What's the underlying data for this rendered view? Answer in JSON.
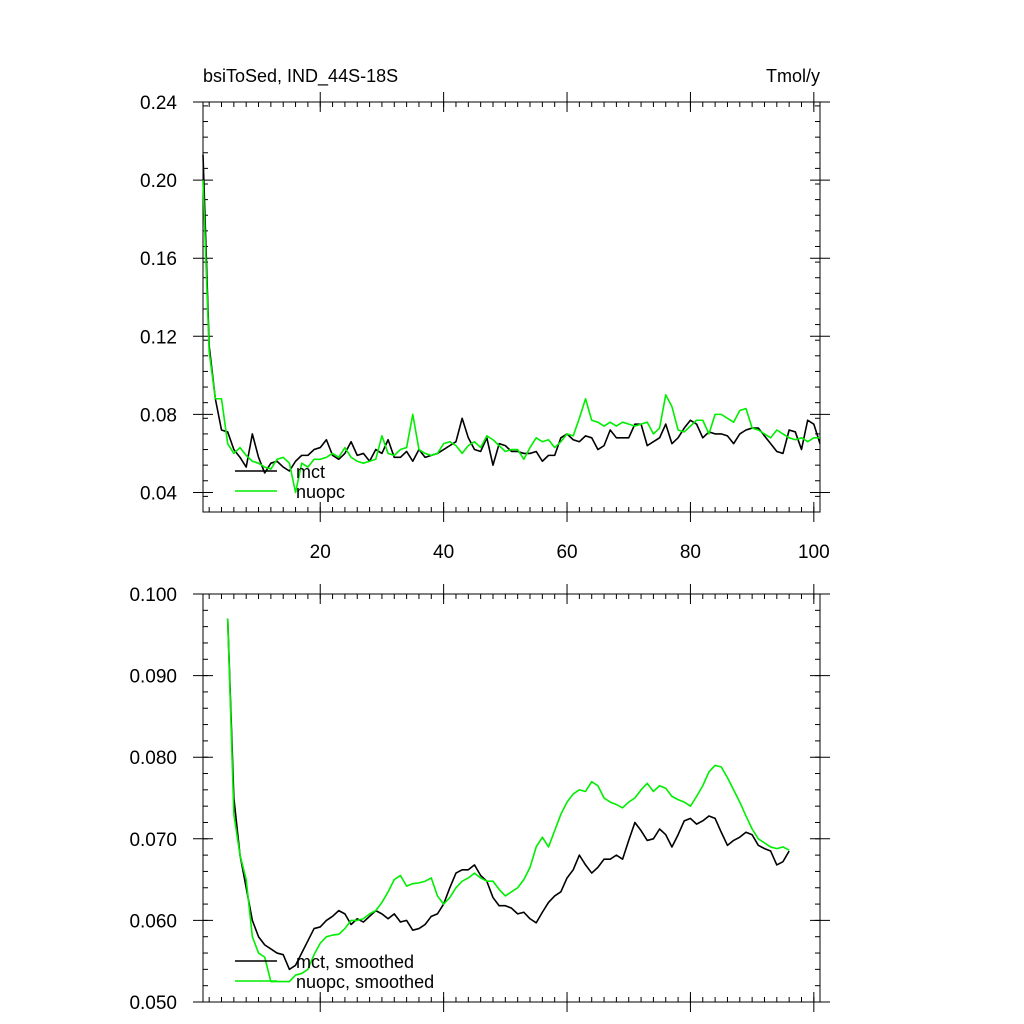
{
  "chart_data": [
    {
      "type": "line",
      "title_left": "bsiToSed, IND_44S-18S",
      "title_right": "Tmol/y",
      "xlim": [
        1,
        101
      ],
      "ylim": [
        0.03,
        0.24
      ],
      "x_ticks": [
        20,
        40,
        60,
        80,
        100
      ],
      "x_tick_labels": [
        "20",
        "40",
        "60",
        "80",
        "100"
      ],
      "y_ticks": [
        0.04,
        0.08,
        0.12,
        0.16,
        0.2,
        0.24
      ],
      "y_tick_labels": [
        "0.04",
        "0.08",
        "0.12",
        "0.16",
        "0.20",
        "0.24"
      ],
      "legend": "bottom-left",
      "x_start": 1,
      "series": [
        {
          "name": "mct",
          "color": "#000000",
          "values": [
            0.213,
            0.115,
            0.088,
            0.072,
            0.071,
            0.062,
            0.058,
            0.053,
            0.07,
            0.058,
            0.05,
            0.055,
            0.056,
            0.053,
            0.051,
            0.056,
            0.059,
            0.059,
            0.062,
            0.063,
            0.067,
            0.059,
            0.057,
            0.06,
            0.066,
            0.059,
            0.06,
            0.056,
            0.062,
            0.06,
            0.067,
            0.058,
            0.058,
            0.061,
            0.056,
            0.062,
            0.058,
            0.059,
            0.06,
            0.062,
            0.064,
            0.066,
            0.078,
            0.068,
            0.062,
            0.061,
            0.068,
            0.054,
            0.065,
            0.064,
            0.061,
            0.061,
            0.06,
            0.06,
            0.061,
            0.056,
            0.059,
            0.059,
            0.068,
            0.07,
            0.067,
            0.066,
            0.069,
            0.068,
            0.062,
            0.064,
            0.072,
            0.068,
            0.068,
            0.068,
            0.075,
            0.075,
            0.064,
            0.066,
            0.068,
            0.075,
            0.065,
            0.068,
            0.073,
            0.077,
            0.075,
            0.068,
            0.071,
            0.07,
            0.07,
            0.069,
            0.065,
            0.07,
            0.072,
            0.073,
            0.073,
            0.069,
            0.065,
            0.061,
            0.06,
            0.072,
            0.071,
            0.062,
            0.077,
            0.075,
            0.065
          ]
        },
        {
          "name": "nuopc",
          "color": "#00ee00",
          "values": [
            0.2,
            0.112,
            0.088,
            0.088,
            0.065,
            0.06,
            0.063,
            0.059,
            0.056,
            0.055,
            0.053,
            0.052,
            0.057,
            0.058,
            0.055,
            0.04,
            0.055,
            0.053,
            0.057,
            0.057,
            0.058,
            0.06,
            0.058,
            0.063,
            0.058,
            0.056,
            0.055,
            0.056,
            0.057,
            0.069,
            0.06,
            0.059,
            0.062,
            0.063,
            0.08,
            0.062,
            0.06,
            0.059,
            0.06,
            0.065,
            0.066,
            0.064,
            0.06,
            0.064,
            0.066,
            0.063,
            0.069,
            0.067,
            0.064,
            0.061,
            0.062,
            0.062,
            0.057,
            0.063,
            0.068,
            0.066,
            0.067,
            0.063,
            0.066,
            0.07,
            0.069,
            0.078,
            0.088,
            0.077,
            0.076,
            0.074,
            0.076,
            0.074,
            0.076,
            0.075,
            0.074,
            0.075,
            0.076,
            0.07,
            0.073,
            0.09,
            0.084,
            0.072,
            0.071,
            0.074,
            0.077,
            0.077,
            0.07,
            0.08,
            0.08,
            0.078,
            0.076,
            0.082,
            0.083,
            0.073,
            0.072,
            0.07,
            0.068,
            0.072,
            0.07,
            0.068,
            0.067,
            0.068,
            0.066,
            0.068,
            0.068
          ]
        }
      ]
    },
    {
      "type": "line",
      "xlim": [
        1,
        101
      ],
      "ylim": [
        0.05,
        0.1
      ],
      "x_ticks": [
        20,
        40,
        60,
        80,
        100
      ],
      "x_tick_labels": [
        "",
        "",
        "",
        "",
        ""
      ],
      "y_ticks": [
        0.05,
        0.06,
        0.07,
        0.08,
        0.09,
        0.1
      ],
      "y_tick_labels": [
        "0.050",
        "0.060",
        "0.070",
        "0.080",
        "0.090",
        "0.100"
      ],
      "legend": "bottom-left",
      "x_start": 5,
      "series": [
        {
          "name": "mct, smoothed",
          "color": "#000000",
          "values": [
            0.097,
            0.075,
            0.068,
            0.064,
            0.06,
            0.058,
            0.057,
            0.0565,
            0.056,
            0.0558,
            0.054,
            0.0545,
            0.056,
            0.0575,
            0.059,
            0.0592,
            0.06,
            0.0605,
            0.0612,
            0.0608,
            0.0595,
            0.0602,
            0.0598,
            0.0605,
            0.0612,
            0.0608,
            0.0602,
            0.0608,
            0.0598,
            0.06,
            0.0588,
            0.059,
            0.0595,
            0.0605,
            0.0608,
            0.062,
            0.064,
            0.0658,
            0.0662,
            0.0662,
            0.0668,
            0.0655,
            0.0648,
            0.0628,
            0.0618,
            0.0618,
            0.0615,
            0.0608,
            0.061,
            0.0602,
            0.0597,
            0.061,
            0.0622,
            0.063,
            0.0635,
            0.0652,
            0.0662,
            0.068,
            0.0668,
            0.0658,
            0.0665,
            0.0675,
            0.0675,
            0.068,
            0.0675,
            0.0698,
            0.072,
            0.071,
            0.0698,
            0.07,
            0.0712,
            0.0705,
            0.069,
            0.0705,
            0.0722,
            0.0725,
            0.0718,
            0.0722,
            0.0728,
            0.0725,
            0.0708,
            0.0692,
            0.0698,
            0.0702,
            0.0708,
            0.0705,
            0.0692,
            0.0688,
            0.0685,
            0.0668,
            0.0672,
            0.0685
          ]
        },
        {
          "name": "nuopc, smoothed",
          "color": "#00ee00",
          "values": [
            0.097,
            0.073,
            0.068,
            0.065,
            0.058,
            0.056,
            0.0555,
            0.0525,
            0.0525,
            0.0525,
            0.0525,
            0.0533,
            0.0535,
            0.054,
            0.0558,
            0.0572,
            0.058,
            0.0582,
            0.0583,
            0.059,
            0.06,
            0.06,
            0.0602,
            0.0608,
            0.0612,
            0.0622,
            0.0635,
            0.065,
            0.0655,
            0.0642,
            0.0645,
            0.0646,
            0.0648,
            0.0652,
            0.063,
            0.062,
            0.0628,
            0.064,
            0.0648,
            0.0652,
            0.0658,
            0.0652,
            0.0648,
            0.0648,
            0.0638,
            0.063,
            0.0635,
            0.064,
            0.065,
            0.0665,
            0.069,
            0.0702,
            0.069,
            0.071,
            0.073,
            0.0745,
            0.0755,
            0.076,
            0.0758,
            0.077,
            0.0765,
            0.075,
            0.0745,
            0.0742,
            0.0738,
            0.0745,
            0.075,
            0.076,
            0.0768,
            0.0758,
            0.0765,
            0.0762,
            0.0752,
            0.0748,
            0.0745,
            0.074,
            0.0752,
            0.0765,
            0.0782,
            0.079,
            0.0788,
            0.0775,
            0.076,
            0.0745,
            0.0728,
            0.0712,
            0.07,
            0.0695,
            0.069,
            0.0688,
            0.069,
            0.0686
          ]
        }
      ]
    }
  ]
}
